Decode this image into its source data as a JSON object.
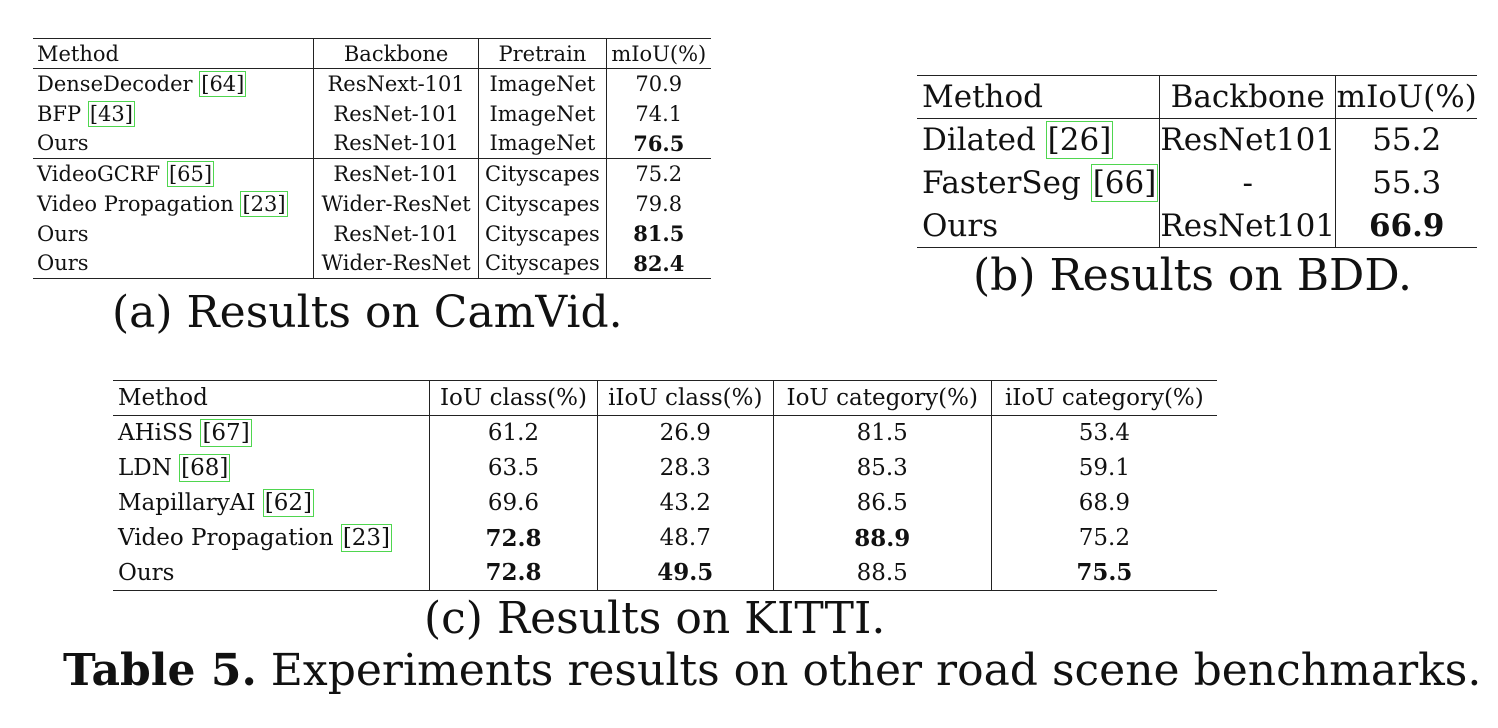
{
  "table_a": {
    "caption": "(a) Results on CamVid.",
    "headers": [
      "Method",
      "Backbone",
      "Pretrain",
      "mIoU(%)"
    ],
    "rows": [
      {
        "method": "DenseDecoder ",
        "cite": "[64]",
        "backbone": "ResNext-101",
        "pretrain": "ImageNet",
        "miou": "70.9",
        "bold": false
      },
      {
        "method": "BFP ",
        "cite": "[43]",
        "backbone": "ResNet-101",
        "pretrain": "ImageNet",
        "miou": "74.1",
        "bold": false
      },
      {
        "method": "Ours",
        "cite": "",
        "backbone": "ResNet-101",
        "pretrain": "ImageNet",
        "miou": "76.5",
        "bold": true
      },
      {
        "method": "VideoGCRF ",
        "cite": "[65]",
        "backbone": "ResNet-101",
        "pretrain": "Cityscapes",
        "miou": "75.2",
        "bold": false
      },
      {
        "method": "Video Propagation ",
        "cite": "[23]",
        "backbone": "Wider-ResNet",
        "pretrain": "Cityscapes",
        "miou": "79.8",
        "bold": false
      },
      {
        "method": "Ours",
        "cite": "",
        "backbone": "ResNet-101",
        "pretrain": "Cityscapes",
        "miou": "81.5",
        "bold": true
      },
      {
        "method": "Ours",
        "cite": "",
        "backbone": "Wider-ResNet",
        "pretrain": "Cityscapes",
        "miou": "82.4",
        "bold": true
      }
    ]
  },
  "table_b": {
    "caption": "(b) Results on BDD.",
    "headers": [
      "Method",
      "Backbone",
      "mIoU(%)"
    ],
    "rows": [
      {
        "method": "Dilated ",
        "cite": "[26]",
        "backbone": "ResNet101",
        "miou": "55.2",
        "bold": false
      },
      {
        "method": "FasterSeg ",
        "cite": "[66]",
        "backbone": "-",
        "miou": "55.3",
        "bold": false
      },
      {
        "method": "Ours",
        "cite": "",
        "backbone": "ResNet101",
        "miou": "66.9",
        "bold": true
      }
    ]
  },
  "table_c": {
    "caption": "(c) Results on KITTI.",
    "headers": [
      "Method",
      "IoU class(%)",
      "iIoU class(%)",
      "IoU category(%)",
      "iIoU category(%)"
    ],
    "rows": [
      {
        "method": "AHiSS ",
        "cite": "[67]",
        "iou_class": "61.2",
        "iiou_class": "26.9",
        "iou_cat": "81.5",
        "iiou_cat": "53.4"
      },
      {
        "method": "LDN ",
        "cite": "[68]",
        "iou_class": "63.5",
        "iiou_class": "28.3",
        "iou_cat": "85.3",
        "iiou_cat": "59.1"
      },
      {
        "method": "MapillaryAI ",
        "cite": "[62]",
        "iou_class": "69.6",
        "iiou_class": "43.2",
        "iou_cat": "86.5",
        "iiou_cat": "68.9"
      },
      {
        "method": "Video Propagation ",
        "cite": "[23]",
        "iou_class": "72.8",
        "iiou_class": "48.7",
        "iou_cat": "88.9",
        "iiou_cat": "75.2"
      },
      {
        "method": "Ours",
        "cite": "",
        "iou_class": "72.8",
        "iiou_class": "49.5",
        "iou_cat": "88.5",
        "iiou_cat": "75.5"
      }
    ]
  },
  "main_caption": {
    "label": "Table 5.",
    "text": " Experiments results on other road scene benchmarks."
  }
}
